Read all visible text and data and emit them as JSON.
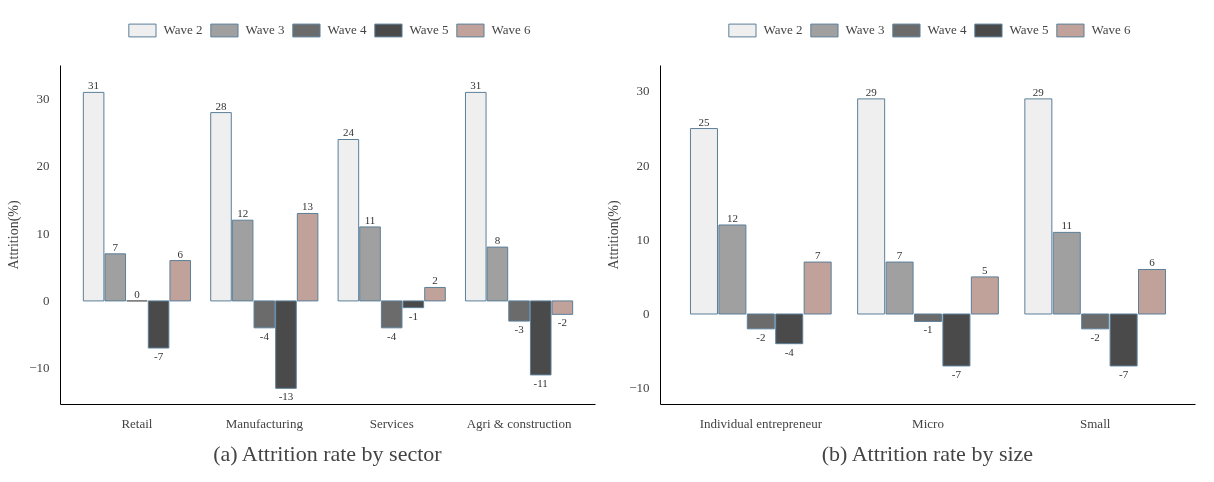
{
  "chart_data": [
    {
      "type": "bar",
      "title": "(a) Attrition rate by sector",
      "ylabel": "Attrition(%)",
      "categories": [
        "Retail",
        "Manufacturing",
        "Services",
        "Agri & construction"
      ],
      "ylim": [
        -15.4,
        35
      ],
      "yticks": [
        -10,
        0,
        10,
        20,
        30
      ],
      "grid": false,
      "legend": "top",
      "data_labels": true,
      "series": [
        {
          "name": "Wave 2",
          "color": "#efefef",
          "values": [
            31,
            28,
            24,
            31
          ]
        },
        {
          "name": "Wave 3",
          "color": "#a0a0a0",
          "values": [
            7,
            12,
            11,
            8
          ]
        },
        {
          "name": "Wave 4",
          "color": "#6b6b6b",
          "values": [
            0,
            -4,
            -4,
            -3
          ]
        },
        {
          "name": "Wave 5",
          "color": "#4a4a4a",
          "values": [
            -7,
            -13,
            -1,
            -11
          ]
        },
        {
          "name": "Wave 6",
          "color": "#c0a29a",
          "values": [
            6,
            13,
            2,
            -2
          ]
        }
      ]
    },
    {
      "type": "bar",
      "title": "(b) Attrition rate by size",
      "ylabel": "Attrition(%)",
      "categories": [
        "Individual entrepreneur",
        "Micro",
        "Small"
      ],
      "ylim": [
        -12.2,
        33.5
      ],
      "yticks": [
        -10,
        0,
        10,
        20,
        30
      ],
      "grid": false,
      "legend": "top",
      "data_labels": true,
      "series": [
        {
          "name": "Wave 2",
          "color": "#efefef",
          "values": [
            25,
            29,
            29
          ]
        },
        {
          "name": "Wave 3",
          "color": "#a0a0a0",
          "values": [
            12,
            7,
            11
          ]
        },
        {
          "name": "Wave 4",
          "color": "#6b6b6b",
          "values": [
            -2,
            -1,
            -2
          ]
        },
        {
          "name": "Wave 5",
          "color": "#4a4a4a",
          "values": [
            -4,
            -7,
            -7
          ]
        },
        {
          "name": "Wave 6",
          "color": "#c0a29a",
          "values": [
            7,
            5,
            6
          ]
        }
      ]
    }
  ]
}
